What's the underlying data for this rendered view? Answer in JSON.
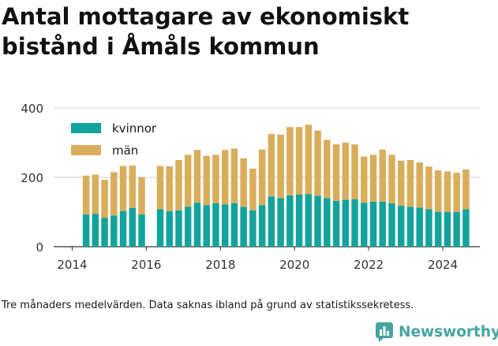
{
  "title": "Antal mottagare av ekonomiskt bistånd i Åmåls kommun",
  "note": "Tre månaders medelvärden. Data saknas ibland på grund av statistikssekretess.",
  "brand": "Newsworthy",
  "colors": {
    "kvinnor": "#12a39c",
    "man": "#d9ad5a",
    "grid": "#cfcfcf",
    "text": "#333333"
  },
  "chart_data": {
    "type": "bar",
    "stacked": true,
    "ylim": [
      0,
      400
    ],
    "yticks": [
      0,
      200,
      400
    ],
    "xlim": [
      2013.5,
      2025.0
    ],
    "xticks": [
      2014,
      2016,
      2018,
      2020,
      2022,
      2024
    ],
    "grid": true,
    "legend_position": "top-left",
    "x": [
      2014.375,
      2014.625,
      2014.875,
      2015.125,
      2015.375,
      2015.625,
      2015.875,
      2016.375,
      2016.625,
      2016.875,
      2017.125,
      2017.375,
      2017.625,
      2017.875,
      2018.125,
      2018.375,
      2018.625,
      2018.875,
      2019.125,
      2019.375,
      2019.625,
      2019.875,
      2020.125,
      2020.375,
      2020.625,
      2020.875,
      2021.125,
      2021.375,
      2021.625,
      2021.875,
      2022.125,
      2022.375,
      2022.625,
      2022.875,
      2023.125,
      2023.375,
      2023.625,
      2023.875,
      2024.125,
      2024.375,
      2024.625
    ],
    "series": [
      {
        "name": "kvinnor",
        "values": [
          93,
          95,
          83,
          90,
          103,
          112,
          93,
          108,
          102,
          105,
          115,
          127,
          120,
          125,
          122,
          125,
          115,
          105,
          120,
          145,
          140,
          148,
          150,
          152,
          147,
          140,
          132,
          135,
          137,
          127,
          130,
          130,
          125,
          118,
          115,
          113,
          108,
          100,
          100,
          100,
          108
        ]
      },
      {
        "name": "män",
        "values": [
          112,
          113,
          110,
          125,
          130,
          122,
          107,
          125,
          130,
          145,
          150,
          152,
          142,
          140,
          157,
          158,
          140,
          120,
          160,
          180,
          183,
          197,
          195,
          200,
          188,
          168,
          163,
          165,
          158,
          133,
          135,
          150,
          140,
          130,
          135,
          130,
          123,
          120,
          117,
          113,
          115
        ]
      }
    ]
  }
}
